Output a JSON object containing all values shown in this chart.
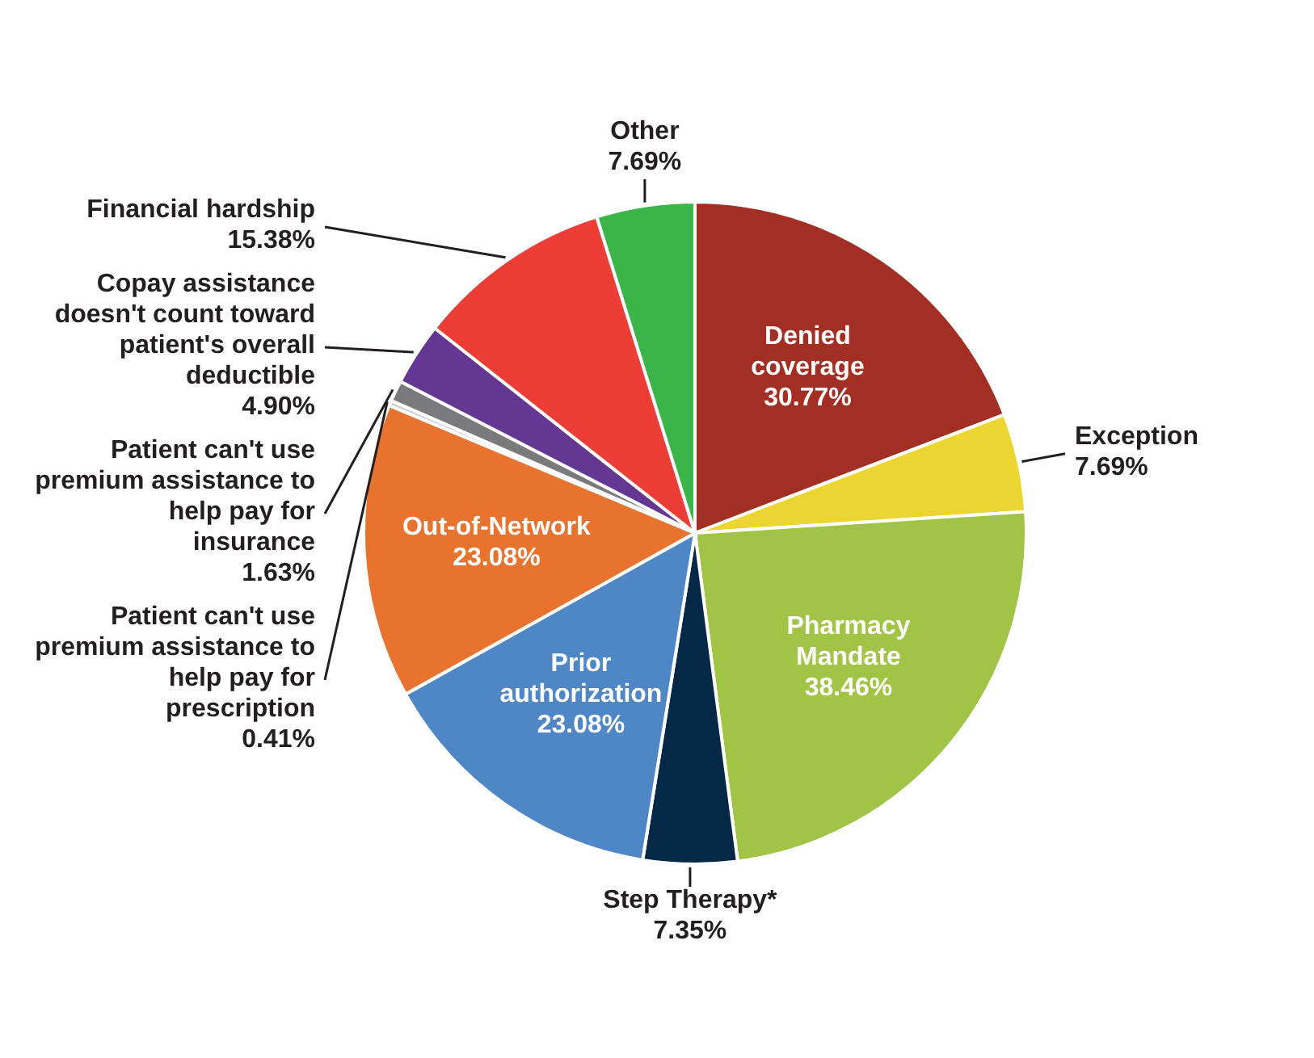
{
  "chart_data": {
    "type": "pie",
    "categories": [
      "Denied coverage",
      "Exception",
      "Pharmacy Mandate",
      "Step Therapy*",
      "Prior authorization",
      "Out-of-Network",
      "Patient can't use premium assistance to help pay for prescription",
      "Patient can't use premium assistance to help pay for insurance",
      "Copay assistance doesn't count toward patient's overall deductible",
      "Financial hardship",
      "Other"
    ],
    "values": [
      30.77,
      7.69,
      38.46,
      7.35,
      23.08,
      23.08,
      0.41,
      1.63,
      4.9,
      15.38,
      7.69
    ],
    "value_labels": [
      "30.77%",
      "7.69%",
      "38.46%",
      "7.35%",
      "23.08%",
      "23.08%",
      "0.41%",
      "1.63%",
      "4.90%",
      "15.38%",
      "7.69%"
    ],
    "colors": [
      "#a32f24",
      "#edd531",
      "#a2c446",
      "#062847",
      "#4e86c6",
      "#e8732f",
      "#cfcfcf",
      "#7a7a7c",
      "#633792",
      "#ec3e37",
      "#3bb44a"
    ]
  }
}
